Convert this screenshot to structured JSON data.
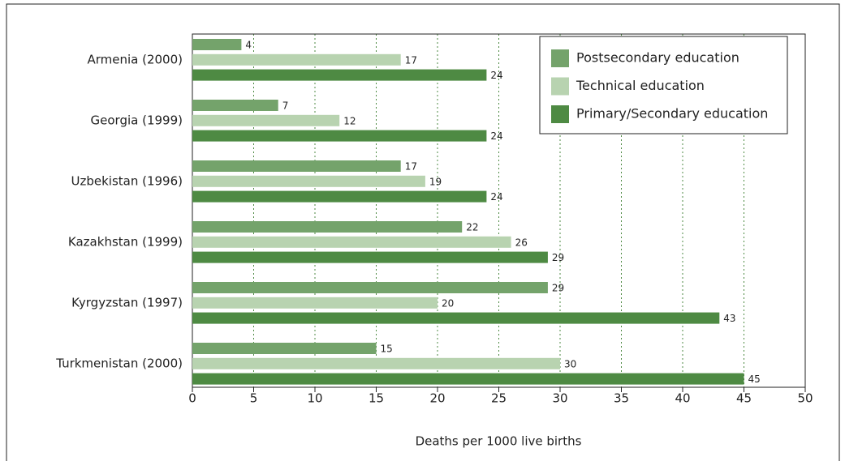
{
  "chart_data": {
    "type": "bar",
    "orientation": "horizontal",
    "xlabel": "Deaths per 1000 live births",
    "categories": [
      "Armenia (2000)",
      "Georgia (1999)",
      "Uzbekistan (1996)",
      "Kazakhstan (1999)",
      "Kyrgyzstan (1997)",
      "Turkmenistan (2000)"
    ],
    "series": [
      {
        "name": "Postsecondary education",
        "color": "#74a36b",
        "values": [
          4,
          7,
          17,
          22,
          29,
          15
        ]
      },
      {
        "name": "Technical education",
        "color": "#b8d3b0",
        "values": [
          17,
          12,
          19,
          26,
          20,
          30
        ]
      },
      {
        "name": "Primary/Secondary education",
        "color": "#4e8a43",
        "values": [
          24,
          24,
          24,
          29,
          43,
          45
        ]
      }
    ],
    "xlim": [
      0,
      50
    ],
    "xticks": [
      0,
      5,
      10,
      15,
      20,
      25,
      30,
      35,
      40,
      45,
      50
    ],
    "grid": true,
    "legend": "upper right"
  }
}
